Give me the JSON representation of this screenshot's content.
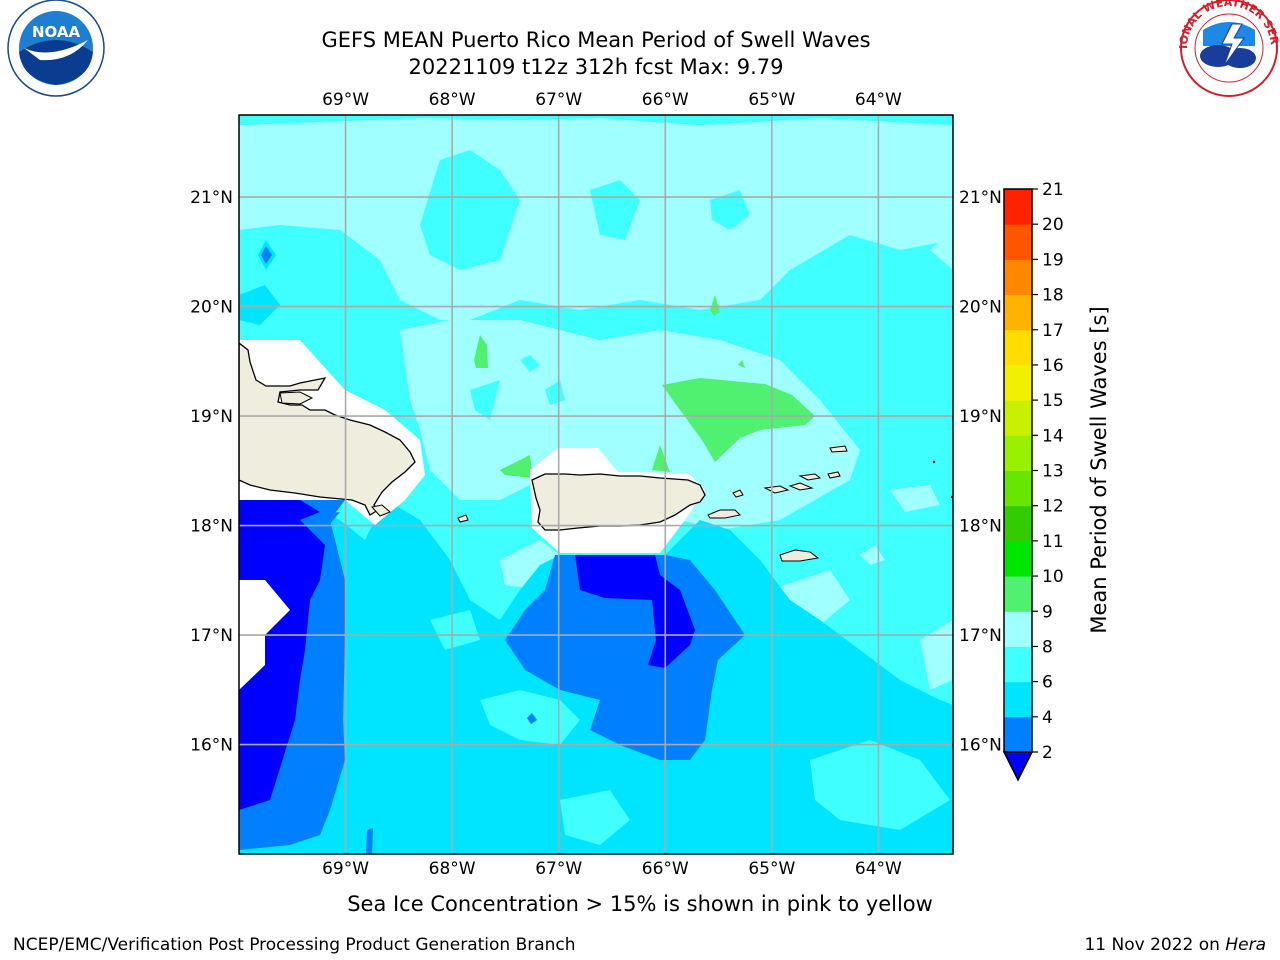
{
  "title": {
    "line1": "GEFS MEAN Puerto Rico Mean Period of Swell Waves",
    "line2": "20221109 t12z 312h fcst   Max: 9.79"
  },
  "logos": {
    "left_text": "NOAA",
    "left_ring": "NATIONAL OCEANIC AND ATMOSPHERIC ADMINISTRATION · U.S. DEPARTMENT OF COMMERCE",
    "right_ring": "NATIONAL WEATHER SERVICE"
  },
  "map": {
    "lon_labels": [
      "69°W",
      "68°W",
      "67°W",
      "66°W",
      "65°W",
      "64°W"
    ],
    "lon_values": [
      -69,
      -68,
      -67,
      -66,
      -65,
      -64
    ],
    "lat_labels": [
      "21°N",
      "20°N",
      "19°N",
      "18°N",
      "17°N",
      "16°N"
    ],
    "lat_values": [
      21,
      20,
      19,
      18,
      17,
      16
    ],
    "extent": {
      "lon_min": -70.0,
      "lon_max": -63.3,
      "lat_min": 15.0,
      "lat_max": 21.75
    }
  },
  "colorbar": {
    "label": "Mean Period of Swell Waves [s]",
    "ticks": [
      "2",
      "4",
      "6",
      "8",
      "9",
      "10",
      "11",
      "12",
      "13",
      "14",
      "15",
      "16",
      "17",
      "18",
      "19",
      "20",
      "21"
    ],
    "colors": [
      "#0080ff",
      "#00e5ff",
      "#40ffff",
      "#a0ffff",
      "#50f070",
      "#00e600",
      "#33cc00",
      "#66e600",
      "#99f000",
      "#c8f000",
      "#f0f000",
      "#ffdd00",
      "#ffb300",
      "#ff8800",
      "#ff5500",
      "#ff2200"
    ],
    "extend_color": "#0000ff"
  },
  "footer": {
    "note": "Sea Ice Concentration > 15% is shown in pink to yellow",
    "left": "NCEP/EMC/Verification Post Processing Product Generation Branch",
    "right_date": "11 Nov 2022 on ",
    "right_host": "Hera"
  },
  "colors": {
    "cyan_6_8": "#40ffff",
    "light_8_9": "#a0ffff",
    "cyan_4_6": "#00e5ff",
    "blue_2_4": "#0080ff",
    "deep_lt2": "#0000ff",
    "green_9_10": "#50f070",
    "land": "#efedde",
    "grid": "#aaaaaa"
  }
}
